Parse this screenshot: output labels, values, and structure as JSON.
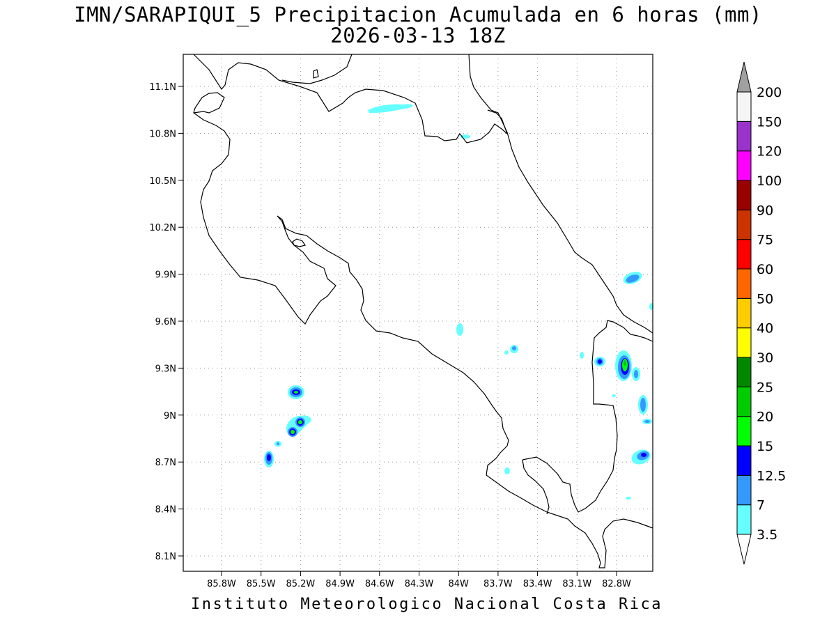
{
  "map": {
    "title_line1": "IMN/SARAPIQUI_5 Precipitacion Acumulada en 6 horas (mm)",
    "title_line2": "2026-03-13 18Z",
    "footer": "Instituto Meteorologico Nacional Costa Rica",
    "x_ticks": [
      "85.8W",
      "85.5W",
      "85.2W",
      "84.9W",
      "84.6W",
      "84.3W",
      "84W",
      "83.7W",
      "83.4W",
      "83.1W",
      "82.8W"
    ],
    "y_ticks": [
      "11.1N",
      "10.8N",
      "10.5N",
      "10.2N",
      "9.9N",
      "9.6N",
      "9.3N",
      "9N",
      "8.7N",
      "8.4N",
      "8.1N"
    ],
    "grid": "dotted",
    "colors": {
      "coast": "#000000",
      "grid": "#9a9a9a",
      "frame": "#000000"
    }
  },
  "colorbar": {
    "labels": [
      "3.5",
      "7",
      "12.5",
      "15",
      "20",
      "25",
      "30",
      "40",
      "50",
      "60",
      "75",
      "90",
      "100",
      "120",
      "150",
      "200"
    ],
    "colors": [
      "#66ffff",
      "#3399ff",
      "#0000ff",
      "#00ff00",
      "#00cc00",
      "#008800",
      "#ffff00",
      "#ffcc00",
      "#ff6600",
      "#ff0000",
      "#cc3300",
      "#990000",
      "#ff00ff",
      "#9933cc",
      "#f5f5f5"
    ],
    "top_triangle_color": "#a0a0a0",
    "bottom_triangle_color": "#ffffff"
  }
}
